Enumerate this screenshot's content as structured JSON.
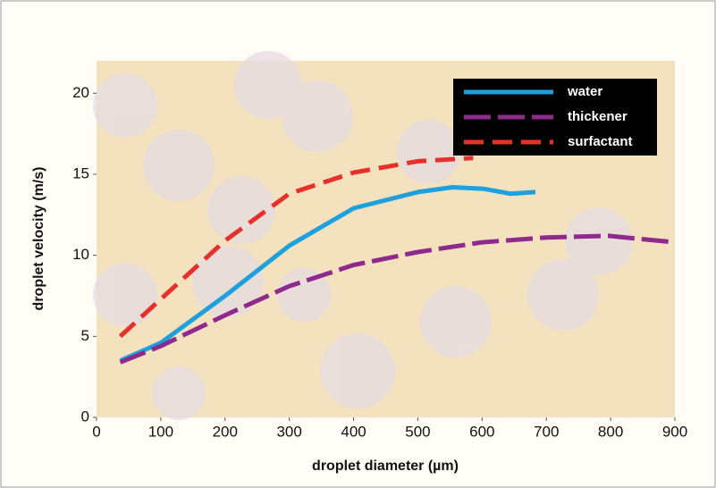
{
  "chart_data": {
    "type": "line",
    "xlabel": "droplet diameter (µm)",
    "ylabel": "droplet velocity (m/s)",
    "xlim": [
      0,
      900
    ],
    "xticks": [
      0,
      100,
      200,
      300,
      400,
      500,
      600,
      700,
      800,
      900
    ],
    "ylim": [
      0,
      22
    ],
    "yticks": [
      0,
      5,
      10,
      15,
      20
    ],
    "legend": "upper right",
    "series": [
      {
        "name": "water",
        "color": "#1ea0dc",
        "dash": "solid",
        "x": [
          37,
          100,
          200,
          300,
          400,
          500,
          554,
          603,
          644,
          683
        ],
        "values": [
          3.5,
          4.6,
          7.5,
          10.6,
          12.9,
          13.9,
          14.2,
          14.1,
          13.8,
          13.9
        ]
      },
      {
        "name": "thickener",
        "color": "#8e2a8c",
        "dash": "long-dash",
        "x": [
          37,
          100,
          200,
          300,
          400,
          500,
          600,
          700,
          797,
          900
        ],
        "values": [
          3.4,
          4.4,
          6.3,
          8.1,
          9.4,
          10.2,
          10.8,
          11.1,
          11.2,
          10.8
        ]
      },
      {
        "name": "surfactant",
        "color": "#e8302a",
        "dash": "dash",
        "x": [
          37,
          100,
          200,
          300,
          400,
          500,
          586
        ],
        "values": [
          5.0,
          7.3,
          10.9,
          13.8,
          15.1,
          15.8,
          16.0
        ]
      }
    ]
  }
}
